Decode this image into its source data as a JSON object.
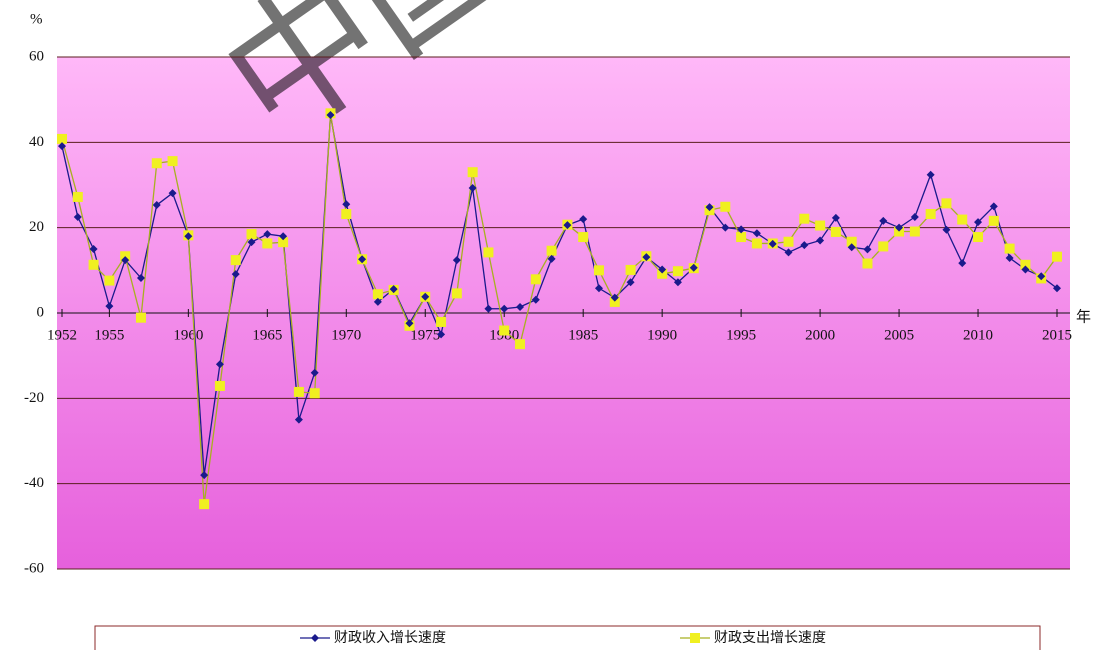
{
  "chart_data": {
    "type": "line",
    "watermark": "中国",
    "ylabel": "%",
    "xlabel": "年",
    "x": [
      1952,
      1953,
      1954,
      1955,
      1956,
      1957,
      1958,
      1959,
      1960,
      1961,
      1962,
      1963,
      1964,
      1965,
      1966,
      1967,
      1968,
      1969,
      1970,
      1971,
      1972,
      1973,
      1974,
      1975,
      1976,
      1977,
      1978,
      1979,
      1980,
      1981,
      1982,
      1983,
      1984,
      1985,
      1986,
      1987,
      1988,
      1989,
      1990,
      1991,
      1992,
      1993,
      1994,
      1995,
      1996,
      1997,
      1998,
      1999,
      2000,
      2001,
      2002,
      2003,
      2004,
      2005,
      2006,
      2007,
      2008,
      2009,
      2010,
      2011,
      2012,
      2013,
      2014,
      2015
    ],
    "series": [
      {
        "name": "财政收入增长速度",
        "color": "#1a1a8c",
        "marker": "diamond",
        "values": [
          39.1,
          22.5,
          15,
          1.6,
          12.4,
          8.2,
          25.3,
          28.1,
          18,
          -38,
          -12,
          9.1,
          16.6,
          18.5,
          18,
          -25,
          -14,
          46.4,
          25.5,
          12.6,
          2.6,
          5.6,
          -2.4,
          3.8,
          -5,
          12.4,
          29.3,
          1,
          1,
          1.4,
          3.1,
          12.7,
          20.6,
          22,
          5.8,
          3.6,
          7.2,
          13.1,
          10.2,
          7.2,
          10.6,
          24.8,
          20,
          19.6,
          18.7,
          16.2,
          14.2,
          15.9,
          17,
          22.3,
          15.4,
          14.9,
          21.6,
          20,
          22.5,
          32.4,
          19.5,
          11.7,
          21.3,
          25,
          12.9,
          10.2,
          8.6,
          5.8
        ]
      },
      {
        "name": "财政支出增长速度",
        "color": "#f0f020",
        "marker": "square",
        "values": [
          40.8,
          27.2,
          11.3,
          7.6,
          13.3,
          -1.1,
          35.1,
          35.6,
          18.2,
          -44.8,
          -17.1,
          12.4,
          18.5,
          16.3,
          16.6,
          -18.5,
          -18.8,
          46.8,
          23.2,
          12.6,
          4.4,
          5.4,
          -3,
          3.8,
          -2.1,
          4.6,
          33,
          14.2,
          -4.1,
          -7.3,
          7.9,
          14.6,
          20.7,
          17.8,
          10,
          2.6,
          10.1,
          13.3,
          9.2,
          9.8,
          10.5,
          24.1,
          24.9,
          17.8,
          16.3,
          16.3,
          16.7,
          22.1,
          20.5,
          19,
          16.7,
          11.6,
          15.6,
          19.1,
          19.1,
          23.2,
          25.7,
          21.9,
          17.8,
          21.6,
          15.1,
          11.3,
          8.1,
          13.2
        ]
      }
    ],
    "xlim": [
      1952,
      2015
    ],
    "xticks": [
      1952,
      1955,
      1960,
      1965,
      1970,
      1975,
      1980,
      1985,
      1990,
      1995,
      2000,
      2005,
      2010,
      2015
    ],
    "ylim": [
      -60,
      60
    ],
    "yticks": [
      -60,
      -40,
      -20,
      0,
      20,
      40,
      60
    ],
    "grid": true,
    "legend": "bottom"
  }
}
